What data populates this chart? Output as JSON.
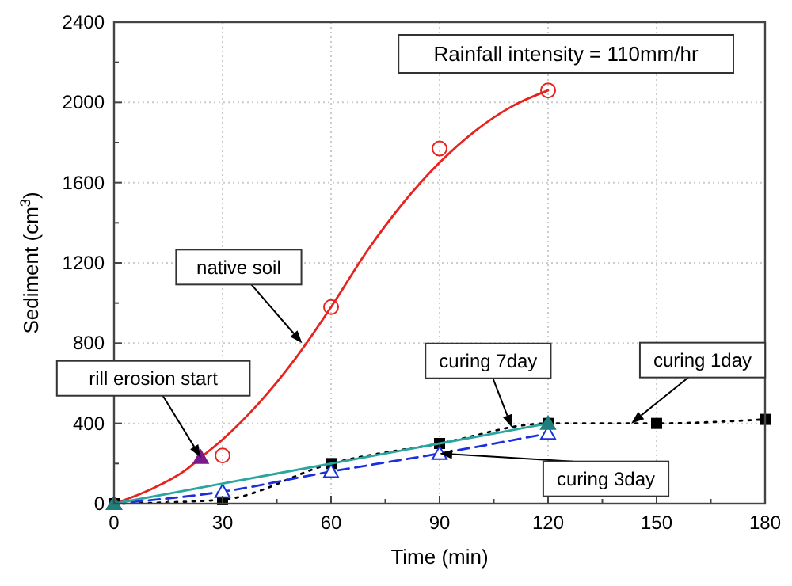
{
  "chart_data": {
    "type": "line",
    "xlabel": "Time (min)",
    "ylabel": "Sediment (cm$^{3}$)",
    "xlim": [
      0,
      180
    ],
    "ylim": [
      0,
      2400
    ],
    "xticks": [
      0,
      30,
      60,
      90,
      120,
      150,
      180
    ],
    "yticks": [
      0,
      400,
      800,
      1200,
      1600,
      2000,
      2400
    ],
    "grid": true,
    "series": [
      {
        "type": "line",
        "color": "#e8231e",
        "line_style": "solid",
        "marker": "none",
        "x": [
          0,
          10,
          20,
          24,
          30,
          40,
          50,
          60,
          70,
          80,
          90,
          100,
          110,
          120
        ],
        "values": [
          0,
          70,
          170,
          230,
          320,
          500,
          720,
          980,
          1260,
          1500,
          1700,
          1860,
          1980,
          2060
        ]
      },
      {
        "type": "scatter",
        "color": "#e8231e",
        "marker": "circle",
        "x": [
          30,
          60,
          90,
          120
        ],
        "values": [
          240,
          980,
          1770,
          2060
        ]
      },
      {
        "type": "line",
        "color": "#000000",
        "line_style": "dotted",
        "marker": "square",
        "x": [
          0,
          30,
          60,
          90,
          120,
          150,
          180
        ],
        "values": [
          0,
          20,
          200,
          300,
          400,
          400,
          420
        ]
      },
      {
        "type": "line",
        "color": "#1a2fe0",
        "line_style": "dashed",
        "marker": "triangle",
        "x": [
          0,
          30,
          60,
          90,
          120
        ],
        "values": [
          0,
          60,
          160,
          250,
          350
        ]
      },
      {
        "type": "line",
        "color": "#2aa5a0",
        "line_style": "solid",
        "marker": "none",
        "x": [
          0,
          30,
          60,
          90,
          120
        ],
        "values": [
          0,
          100,
          200,
          300,
          400
        ]
      },
      {
        "type": "scatter",
        "color": "#1f7f7a",
        "marker": "triangle",
        "x": [
          0,
          120
        ],
        "values": [
          0,
          400
        ]
      },
      {
        "type": "scatter",
        "color": "#7a1a8a",
        "marker": "triangle",
        "x": [
          24
        ],
        "values": [
          230
        ]
      }
    ],
    "annotations": [
      "Rainfall intensity = 110mm/hr",
      {
        "text": "native soil",
        "x": 52,
        "y": 800
      },
      {
        "text": "rill erosion start",
        "x": 24,
        "y": 230
      },
      {
        "text": "curing 7day",
        "x": 110,
        "y": 380
      },
      {
        "text": "curing 1day",
        "x": 143,
        "y": 400
      },
      {
        "text": "curing 3day",
        "x": 90,
        "y": 250
      }
    ]
  }
}
